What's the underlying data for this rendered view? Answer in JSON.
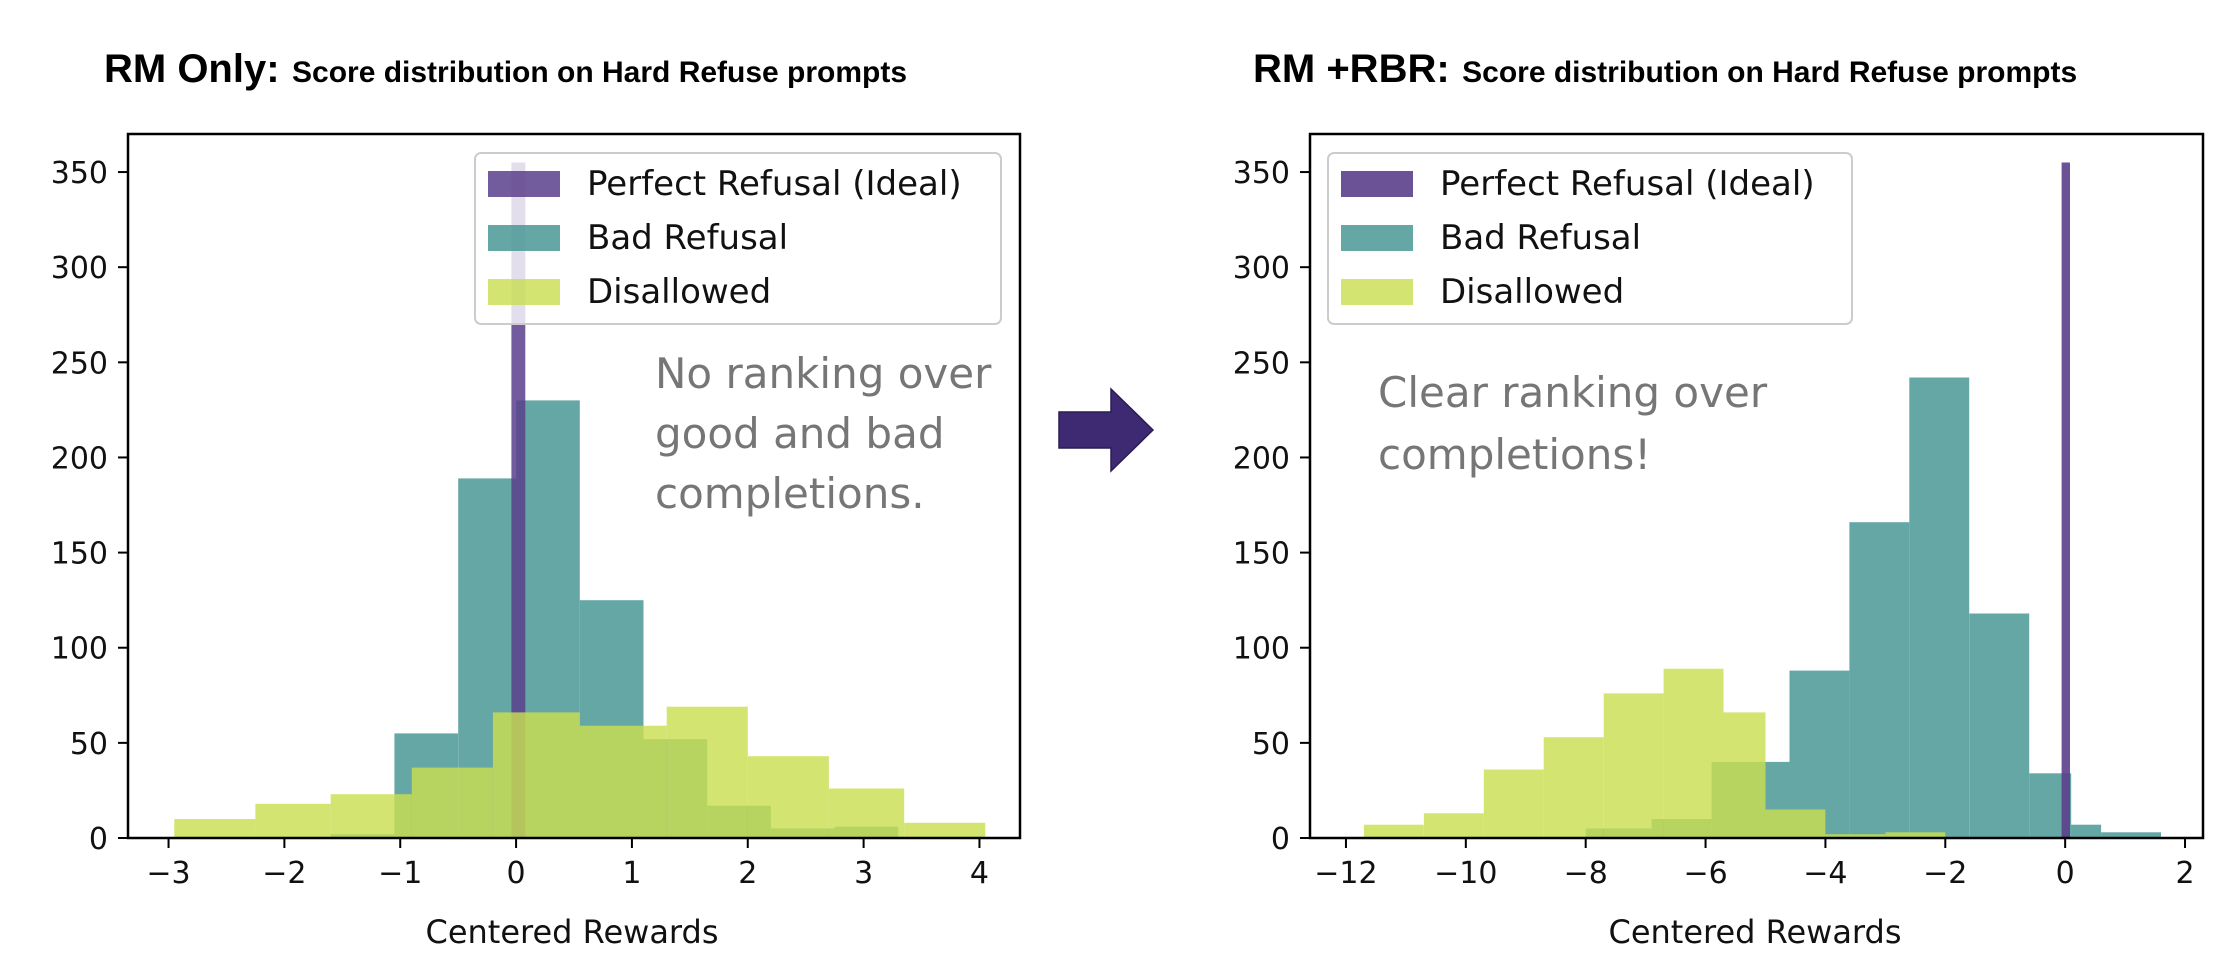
{
  "colors": {
    "ideal": "#5b3f8c",
    "bad": "#4f9b99",
    "disallowed": "#c9de52",
    "arrow": "#3d2a72"
  },
  "arrow_icon": "right-arrow-icon",
  "chart_data": [
    {
      "type": "histogram",
      "title_bold": "RM Only:",
      "title_rest": "Score distribution on Hard Refuse prompts",
      "xlabel": "Centered Rewards",
      "ylabel": "",
      "xlim": [
        -3.35,
        4.35
      ],
      "ylim": [
        0,
        370
      ],
      "xticks": [
        -3,
        -2,
        -1,
        0,
        1,
        2,
        3,
        4
      ],
      "xtick_labels": [
        "−3",
        "−2",
        "−1",
        "0",
        "1",
        "2",
        "3",
        "4"
      ],
      "yticks": [
        0,
        50,
        100,
        150,
        200,
        250,
        300,
        350
      ],
      "ytick_labels": [
        "0",
        "50",
        "100",
        "150",
        "200",
        "250",
        "300",
        "350"
      ],
      "legend_position": "upper-right",
      "annotation": [
        "No ranking over",
        "good and bad",
        "completions."
      ],
      "series": [
        {
          "name": "Bad Refusal",
          "key": "bad",
          "opacity": 0.88,
          "bins": [
            [
              -1.6,
              -1.05,
              2
            ],
            [
              -1.05,
              -0.5,
              55
            ],
            [
              -0.5,
              0.0,
              189
            ],
            [
              0.0,
              0.55,
              230
            ],
            [
              0.55,
              1.1,
              125
            ],
            [
              1.1,
              1.65,
              52
            ],
            [
              1.65,
              2.2,
              17
            ],
            [
              2.2,
              2.75,
              5
            ],
            [
              2.75,
              3.3,
              6
            ]
          ]
        },
        {
          "name": "Perfect Refusal (Ideal)",
          "key": "ideal",
          "opacity": 0.85,
          "bins": [
            [
              -0.04,
              0.08,
              355
            ]
          ]
        },
        {
          "name": "Disallowed",
          "key": "disallowed",
          "opacity": 0.82,
          "bins": [
            [
              -2.95,
              -2.25,
              10
            ],
            [
              -2.25,
              -1.6,
              18
            ],
            [
              -1.6,
              -0.9,
              23
            ],
            [
              -0.9,
              -0.2,
              37
            ],
            [
              -0.2,
              0.55,
              66
            ],
            [
              0.55,
              1.3,
              59
            ],
            [
              1.3,
              2.0,
              69
            ],
            [
              2.0,
              2.7,
              43
            ],
            [
              2.7,
              3.35,
              26
            ],
            [
              3.35,
              4.05,
              8
            ]
          ]
        }
      ]
    },
    {
      "type": "histogram",
      "title_bold": "RM +RBR:",
      "title_rest": "Score distribution on Hard Refuse prompts",
      "xlabel": "Centered Rewards",
      "ylabel": "",
      "xlim": [
        -12.6,
        2.3
      ],
      "ylim": [
        0,
        370
      ],
      "xticks": [
        -12,
        -10,
        -8,
        -6,
        -4,
        -2,
        0,
        2
      ],
      "xtick_labels": [
        "−12",
        "−10",
        "−8",
        "−6",
        "−4",
        "−2",
        "0",
        "2"
      ],
      "yticks": [
        0,
        50,
        100,
        150,
        200,
        250,
        300,
        350
      ],
      "ytick_labels": [
        "0",
        "50",
        "100",
        "150",
        "200",
        "250",
        "300",
        "350"
      ],
      "legend_position": "upper-left",
      "annotation": [
        "Clear ranking over",
        "completions!"
      ],
      "series": [
        {
          "name": "Bad Refusal",
          "key": "bad",
          "opacity": 0.88,
          "bins": [
            [
              -8.0,
              -6.9,
              5
            ],
            [
              -6.9,
              -5.9,
              10
            ],
            [
              -5.9,
              -4.6,
              40
            ],
            [
              -4.6,
              -3.6,
              88
            ],
            [
              -3.6,
              -2.6,
              166
            ],
            [
              -2.6,
              -1.6,
              242
            ],
            [
              -1.6,
              -0.6,
              118
            ],
            [
              -0.6,
              0.1,
              34
            ],
            [
              0.1,
              0.6,
              7
            ],
            [
              0.6,
              1.6,
              3
            ]
          ]
        },
        {
          "name": "Perfect Refusal (Ideal)",
          "key": "ideal",
          "opacity": 0.9,
          "bins": [
            [
              -0.06,
              0.08,
              355
            ]
          ]
        },
        {
          "name": "Disallowed",
          "key": "disallowed",
          "opacity": 0.82,
          "bins": [
            [
              -11.7,
              -10.7,
              7
            ],
            [
              -10.7,
              -9.7,
              13
            ],
            [
              -9.7,
              -8.7,
              36
            ],
            [
              -8.7,
              -7.7,
              53
            ],
            [
              -7.7,
              -6.7,
              76
            ],
            [
              -6.7,
              -5.7,
              89
            ],
            [
              -5.7,
              -5.0,
              66
            ],
            [
              -5.0,
              -4.0,
              15
            ],
            [
              -4.0,
              -3.0,
              2
            ],
            [
              -3.0,
              -2.0,
              3
            ]
          ]
        }
      ]
    }
  ]
}
